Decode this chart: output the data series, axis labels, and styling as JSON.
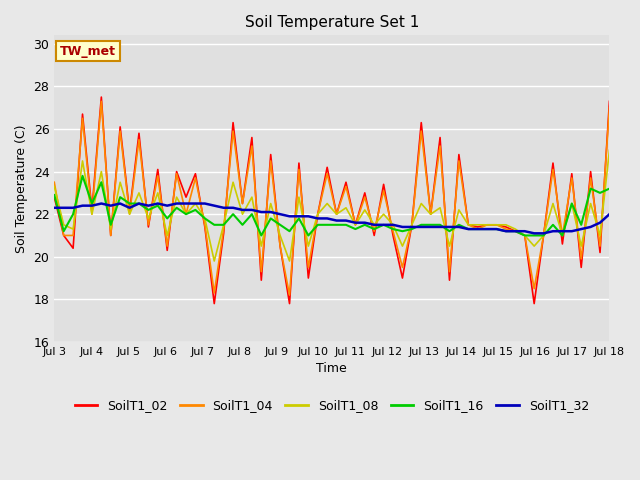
{
  "title": "Soil Temperature Set 1",
  "xlabel": "Time",
  "ylabel": "Soil Temperature (C)",
  "ylim": [
    16,
    30.4
  ],
  "xlim": [
    0,
    15
  ],
  "yticks": [
    16,
    18,
    20,
    22,
    24,
    26,
    28,
    30
  ],
  "xtick_labels": [
    "Jul 3",
    "Jul 4",
    "Jul 5",
    "Jul 6",
    "Jul 7",
    "Jul 8",
    "Jul 9",
    "Jul 10",
    "Jul 11",
    "Jul 12",
    "Jul 13",
    "Jul 14",
    "Jul 15",
    "Jul 16",
    "Jul 17",
    "Jul 18"
  ],
  "xtick_positions": [
    0,
    1,
    2,
    3,
    4,
    5,
    6,
    7,
    8,
    9,
    10,
    11,
    12,
    13,
    14,
    15
  ],
  "annotation_text": "TW_met",
  "fig_facecolor": "#e8e8e8",
  "ax_facecolor": "#e0e0e0",
  "legend_labels": [
    "SoilT1_02",
    "SoilT1_04",
    "SoilT1_08",
    "SoilT1_16",
    "SoilT1_32"
  ],
  "line_colors": [
    "#ff0000",
    "#ff8800",
    "#cccc00",
    "#00cc00",
    "#0000bb"
  ],
  "line_widths": [
    1.2,
    1.2,
    1.2,
    1.5,
    1.8
  ],
  "SoilT1_02": [
    22.8,
    21.0,
    20.4,
    26.7,
    22.2,
    27.5,
    21.0,
    26.1,
    22.1,
    25.8,
    21.4,
    24.1,
    20.3,
    24.0,
    22.8,
    23.9,
    21.4,
    17.8,
    21.1,
    26.3,
    22.5,
    25.6,
    18.9,
    24.8,
    20.5,
    17.8,
    24.4,
    19.0,
    22.0,
    24.2,
    22.0,
    23.5,
    21.5,
    23.0,
    21.0,
    23.4,
    21.0,
    19.0,
    21.5,
    26.3,
    22.0,
    25.6,
    18.9,
    24.8,
    21.5,
    21.4,
    21.5,
    21.5,
    21.4,
    21.2,
    21.0,
    17.8,
    21.0,
    24.4,
    20.6,
    23.9,
    19.5,
    24.0,
    20.2,
    27.3
  ],
  "SoilT1_04": [
    23.5,
    21.0,
    21.0,
    26.5,
    22.0,
    27.3,
    21.0,
    25.9,
    22.0,
    25.5,
    21.5,
    23.8,
    20.5,
    23.9,
    22.0,
    23.7,
    21.5,
    18.3,
    21.3,
    25.9,
    22.5,
    25.2,
    19.3,
    24.5,
    20.5,
    18.2,
    24.1,
    19.5,
    22.0,
    23.9,
    22.0,
    23.3,
    21.5,
    22.8,
    21.2,
    23.1,
    21.2,
    19.5,
    21.5,
    25.9,
    22.0,
    25.2,
    19.3,
    24.5,
    21.5,
    21.3,
    21.5,
    21.5,
    21.3,
    21.2,
    21.0,
    18.5,
    21.0,
    24.1,
    21.0,
    23.7,
    19.9,
    23.7,
    20.5,
    27.0
  ],
  "SoilT1_08": [
    23.3,
    21.5,
    21.3,
    24.5,
    22.0,
    24.0,
    21.3,
    23.5,
    22.0,
    23.0,
    21.8,
    23.0,
    21.0,
    22.8,
    22.0,
    22.5,
    21.8,
    19.8,
    21.5,
    23.5,
    22.0,
    22.8,
    20.5,
    22.5,
    21.0,
    19.8,
    22.8,
    20.5,
    22.0,
    22.5,
    22.0,
    22.3,
    21.5,
    22.2,
    21.5,
    22.0,
    21.5,
    20.5,
    21.5,
    22.5,
    22.0,
    22.3,
    20.5,
    22.2,
    21.5,
    21.5,
    21.5,
    21.5,
    21.5,
    21.3,
    21.0,
    20.5,
    21.0,
    22.5,
    21.0,
    22.5,
    20.5,
    22.5,
    21.0,
    25.0
  ],
  "SoilT1_16": [
    22.9,
    21.2,
    22.0,
    23.8,
    22.5,
    23.5,
    21.5,
    22.8,
    22.5,
    22.5,
    22.2,
    22.4,
    21.8,
    22.3,
    22.0,
    22.2,
    21.8,
    21.5,
    21.5,
    22.0,
    21.5,
    22.0,
    21.0,
    21.8,
    21.5,
    21.2,
    21.8,
    21.0,
    21.5,
    21.5,
    21.5,
    21.5,
    21.3,
    21.5,
    21.3,
    21.5,
    21.3,
    21.2,
    21.3,
    21.5,
    21.5,
    21.5,
    21.2,
    21.5,
    21.3,
    21.3,
    21.3,
    21.3,
    21.2,
    21.2,
    21.0,
    21.0,
    21.0,
    21.5,
    21.0,
    22.5,
    21.5,
    23.2,
    23.0,
    23.2
  ],
  "SoilT1_32": [
    22.3,
    22.3,
    22.3,
    22.4,
    22.4,
    22.5,
    22.4,
    22.5,
    22.3,
    22.5,
    22.4,
    22.5,
    22.4,
    22.5,
    22.5,
    22.5,
    22.5,
    22.4,
    22.3,
    22.3,
    22.2,
    22.2,
    22.1,
    22.1,
    22.0,
    21.9,
    21.9,
    21.9,
    21.8,
    21.8,
    21.7,
    21.7,
    21.6,
    21.6,
    21.5,
    21.5,
    21.5,
    21.4,
    21.4,
    21.4,
    21.4,
    21.4,
    21.4,
    21.4,
    21.3,
    21.3,
    21.3,
    21.3,
    21.2,
    21.2,
    21.2,
    21.1,
    21.1,
    21.2,
    21.2,
    21.2,
    21.3,
    21.4,
    21.6,
    22.0
  ]
}
